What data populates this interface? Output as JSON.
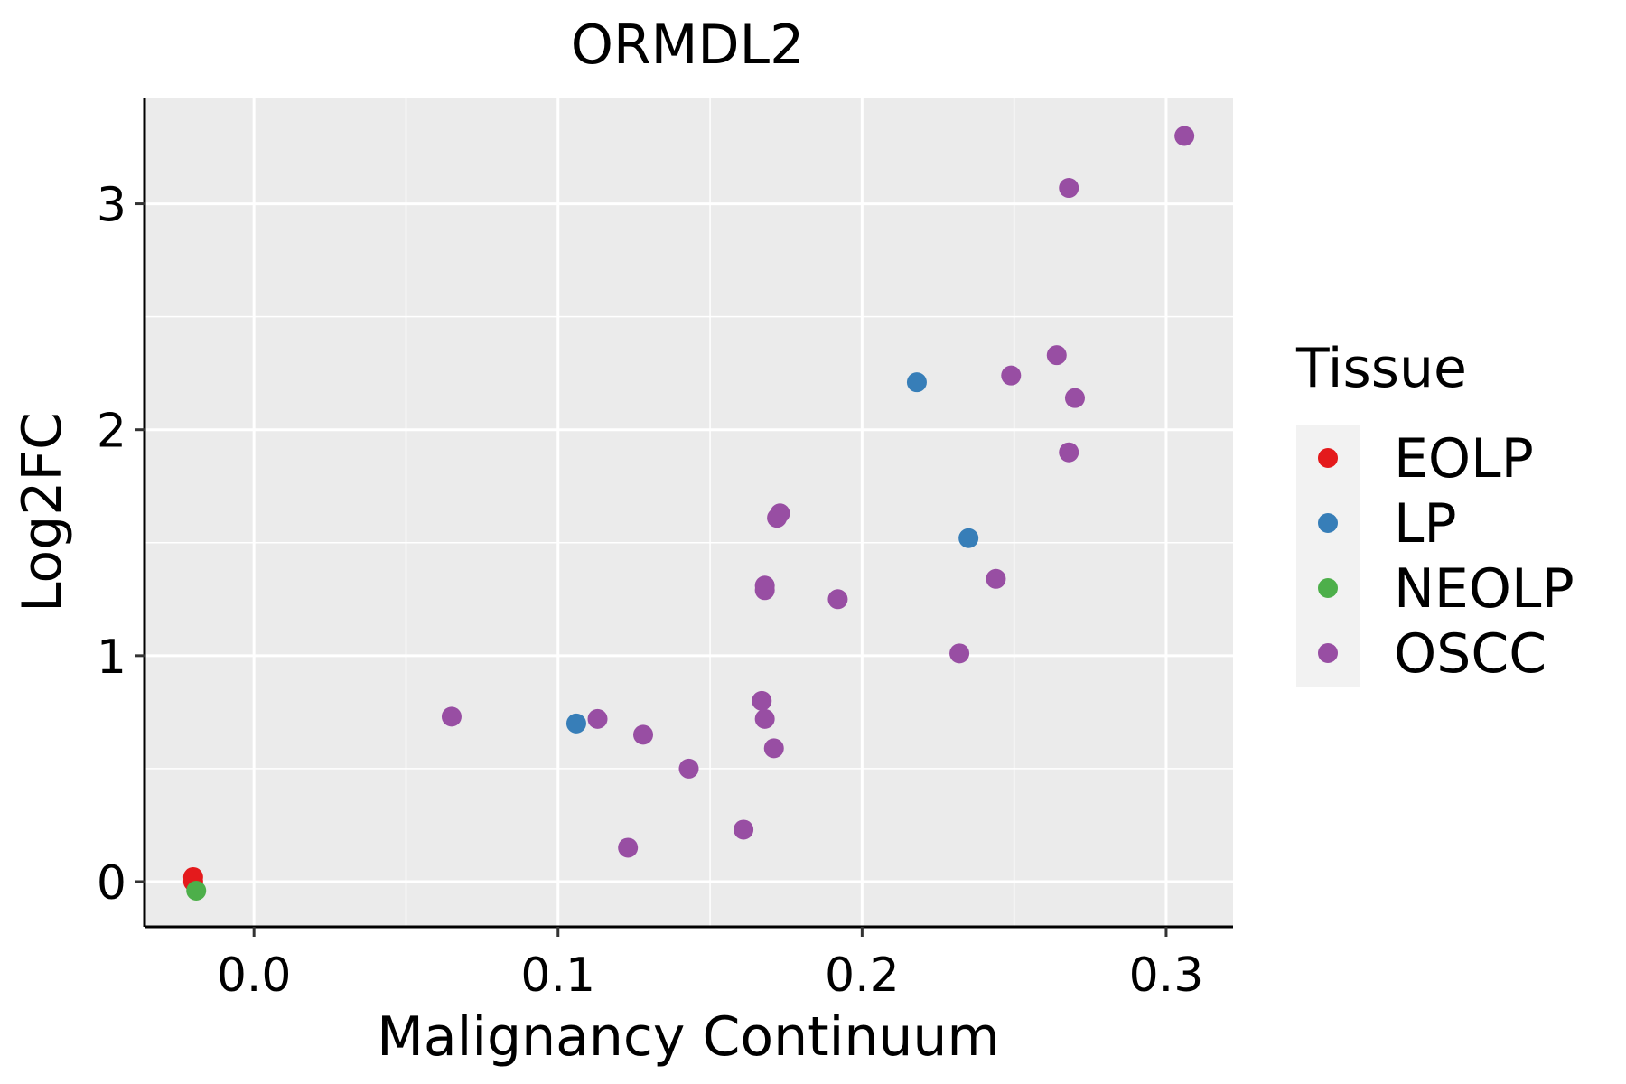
{
  "chart_data": {
    "type": "scatter",
    "title": "ORMDL2",
    "xlabel": "Malignancy Continuum",
    "ylabel": "Log2FC",
    "xlim": [
      -0.036,
      0.322
    ],
    "ylim": [
      -0.2,
      3.47
    ],
    "x_ticks": [
      0.0,
      0.1,
      0.2,
      0.3
    ],
    "x_tick_labels": [
      "0.0",
      "0.1",
      "0.2",
      "0.3"
    ],
    "y_ticks": [
      0,
      1,
      2,
      3
    ],
    "y_tick_labels": [
      "0",
      "1",
      "2",
      "3"
    ],
    "x_minor": [
      0.05,
      0.15,
      0.25
    ],
    "y_minor": [
      0.5,
      1.5,
      2.5
    ],
    "grid": true,
    "legend": {
      "title": "Tissue",
      "position": "right",
      "entries": [
        {
          "label": "EOLP",
          "color": "#E41A1C"
        },
        {
          "label": "LP",
          "color": "#377EB8"
        },
        {
          "label": "NEOLP",
          "color": "#4DAF4A"
        },
        {
          "label": "OSCC",
          "color": "#984EA3"
        }
      ]
    },
    "series": [
      {
        "name": "EOLP",
        "color": "#E41A1C",
        "points": [
          [
            -0.02,
            0.02
          ],
          [
            -0.02,
            0.0
          ]
        ]
      },
      {
        "name": "LP",
        "color": "#377EB8",
        "points": [
          [
            0.106,
            0.7
          ],
          [
            0.218,
            2.21
          ],
          [
            0.235,
            1.52
          ]
        ]
      },
      {
        "name": "NEOLP",
        "color": "#4DAF4A",
        "points": [
          [
            -0.019,
            -0.04
          ]
        ]
      },
      {
        "name": "OSCC",
        "color": "#984EA3",
        "points": [
          [
            0.065,
            0.73
          ],
          [
            0.113,
            0.72
          ],
          [
            0.123,
            0.15
          ],
          [
            0.128,
            0.65
          ],
          [
            0.143,
            0.5
          ],
          [
            0.161,
            0.23
          ],
          [
            0.167,
            0.8
          ],
          [
            0.168,
            0.72
          ],
          [
            0.171,
            0.59
          ],
          [
            0.168,
            1.29
          ],
          [
            0.168,
            1.31
          ],
          [
            0.172,
            1.61
          ],
          [
            0.173,
            1.63
          ],
          [
            0.192,
            1.25
          ],
          [
            0.232,
            1.01
          ],
          [
            0.244,
            1.34
          ],
          [
            0.249,
            2.24
          ],
          [
            0.264,
            2.33
          ],
          [
            0.268,
            1.9
          ],
          [
            0.268,
            3.07
          ],
          [
            0.27,
            2.14
          ],
          [
            0.306,
            3.3
          ]
        ]
      }
    ]
  }
}
